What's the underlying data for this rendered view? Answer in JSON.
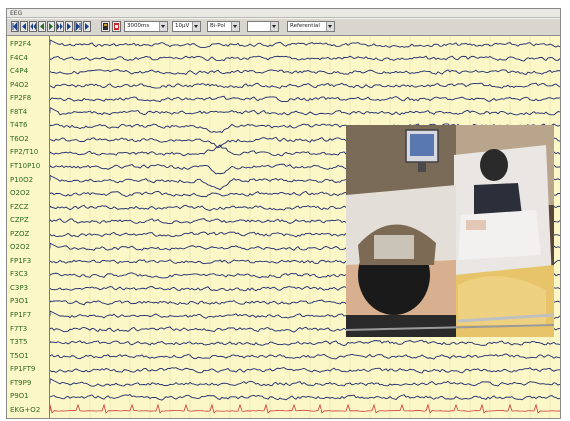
{
  "window": {
    "title": "EEG"
  },
  "toolbar": {
    "selects": [
      "3000ms",
      "10µV",
      "Bi-Pol",
      "",
      "Referential"
    ],
    "icons": [
      "first-page-icon",
      "previous-page-icon",
      "rewind-icon",
      "play-back-icon",
      "play-forward-icon",
      "fast-forward-icon",
      "next-page-icon",
      "last-page-icon",
      "bookmark-icon",
      "record-icon"
    ]
  },
  "channels": [
    "FP2F4",
    "F4C4",
    "C4P4",
    "P4O2",
    "FP2F8",
    "F8T4",
    "T4T6",
    "T6O2",
    "FP2/T10",
    "FT10P10",
    "P10O2",
    "O2O2",
    "FZCZ",
    "CZPZ",
    "PZOZ",
    "O2O2",
    "FP1F3",
    "F3C3",
    "C3P3",
    "P3O1",
    "FP1F7",
    "F7T3",
    "T3T5",
    "T5O1",
    "FP1FT9",
    "FT9P9",
    "P9O1",
    "EKG+O2"
  ],
  "colors": {
    "background": "#fbf7c6",
    "trace": "#1c2a6e",
    "label": "#2d6b1f",
    "ekg": "#d03c3c",
    "gridline": "#e6e0a8"
  },
  "video_overlay": {
    "description_icon": "patient-video-icon"
  }
}
